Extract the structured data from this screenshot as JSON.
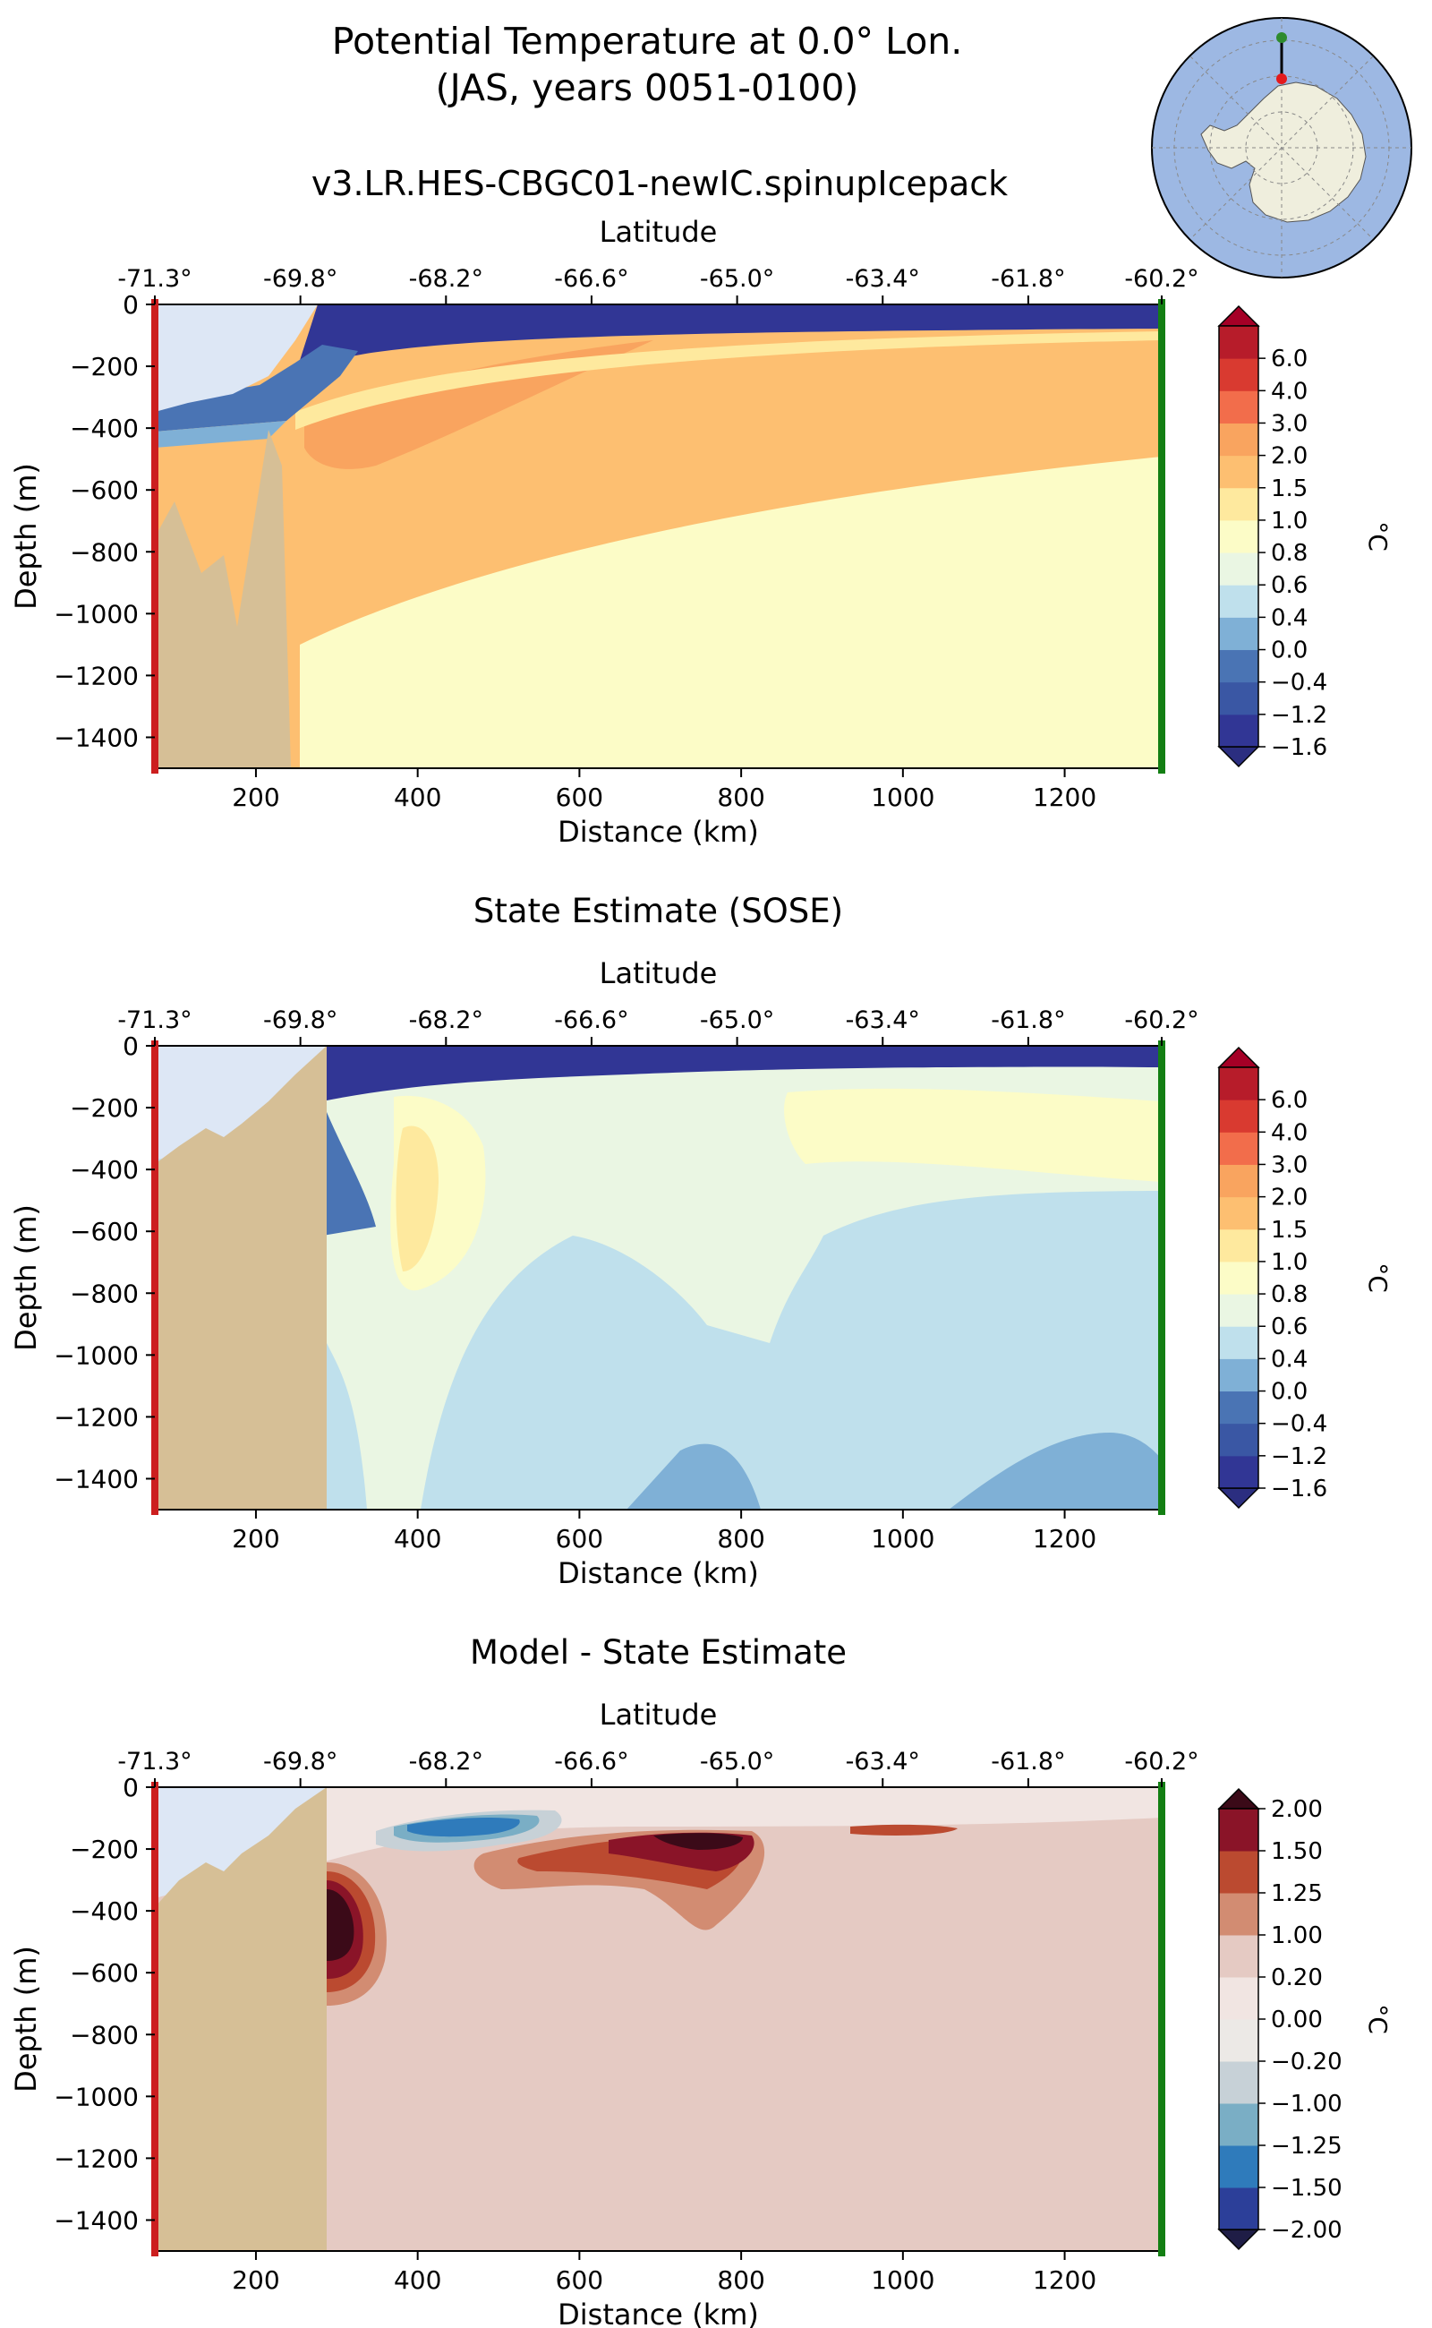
{
  "header": {
    "title_line1": "Potential Temperature at 0.0° Lon.",
    "title_line2": "(JAS, years 0051-0100)",
    "run_name": "v3.LR.HES-CBGC01-newIC.spinupIcepack"
  },
  "inset_map": {
    "projection": "south-polar-stereographic",
    "ocean_color": "#9db8e3",
    "land_color": "#efeedd",
    "transect_color": "#000000",
    "start_marker_color": "#e41a1c",
    "end_marker_color": "#2e8b2e"
  },
  "colors": {
    "ice_shelf_cavity": "#dde7f5",
    "bathymetry": "#d6bf96",
    "section_start_line": "#cc1f1f",
    "section_end_line": "#137f13"
  },
  "chart_data": [
    {
      "type": "heatmap",
      "subplot": "model",
      "title": "",
      "xlabel": "Distance (km)",
      "ylabel": "Depth (m)",
      "top_xlabel": "Latitude",
      "xlim": [
        75,
        1320
      ],
      "ylim": [
        -1500,
        0
      ],
      "xticks": [
        200,
        400,
        600,
        800,
        1000,
        1200
      ],
      "xtick_labels": [
        "200",
        "400",
        "600",
        "800",
        "1000",
        "1200"
      ],
      "yticks": [
        0,
        -200,
        -400,
        -600,
        -800,
        -1000,
        -1200,
        -1400
      ],
      "ytick_labels": [
        "0",
        "−200",
        "−400",
        "−600",
        "−800",
        "−1000",
        "−1200",
        "−1400"
      ],
      "lat_tick_positions": [
        75,
        255,
        435,
        615,
        795,
        975,
        1155,
        1320
      ],
      "lat_tick_labels": [
        "-71.3°",
        "-69.8°",
        "-68.2°",
        "-66.6°",
        "-65.0°",
        "-63.4°",
        "-61.8°",
        "-60.2°"
      ],
      "colorbar": {
        "label": "°C",
        "levels": [
          -1.6,
          -1.2,
          -0.4,
          0.0,
          0.4,
          0.6,
          0.8,
          1.0,
          1.5,
          2.0,
          3.0,
          4.0,
          6.0
        ],
        "tick_labels": [
          "−1.6",
          "−1.2",
          "−0.4",
          "0.0",
          "0.4",
          "0.6",
          "0.8",
          "1.0",
          "1.5",
          "2.0",
          "3.0",
          "4.0",
          "6.0"
        ],
        "colors": [
          "#313695",
          "#3a57a4",
          "#4a74b4",
          "#7fb0d6",
          "#bfe0ec",
          "#eaf6e3",
          "#fcfcc7",
          "#fee99e",
          "#fdbf71",
          "#f9a45f",
          "#f26d4b",
          "#d93a30",
          "#b71c2a"
        ],
        "under_color": "#2b2e80",
        "over_color": "#a50026"
      },
      "background_value": 0.9,
      "features": [
        {
          "value": -1.8,
          "x": [
            295,
            1315,
            1315,
            1315,
            295
          ],
          "y": [
            -25,
            -25,
            -110,
            -110,
            -110
          ],
          "note": "surface cold layer"
        },
        {
          "value": 1.2,
          "x": [
            255,
            1315
          ],
          "y": [
            -130,
            -520
          ]
        },
        {
          "value": 1.8,
          "x": [
            350,
            700
          ],
          "y": [
            -150,
            -450
          ]
        },
        {
          "value": 0.9,
          "x": [
            255,
            1315
          ],
          "y": [
            -1100,
            -1500
          ]
        }
      ],
      "mask": {
        "cavity_top_depth_km": [
          75,
          170,
          255,
          295
        ],
        "bathymetry": "continental shelf to ~255 km"
      }
    },
    {
      "type": "heatmap",
      "subplot": "sose",
      "title": "State Estimate (SOSE)",
      "xlabel": "Distance (km)",
      "ylabel": "Depth (m)",
      "top_xlabel": "Latitude",
      "xlim": [
        75,
        1320
      ],
      "ylim": [
        -1500,
        0
      ],
      "xticks": [
        200,
        400,
        600,
        800,
        1000,
        1200
      ],
      "xtick_labels": [
        "200",
        "400",
        "600",
        "800",
        "1000",
        "1200"
      ],
      "yticks": [
        0,
        -200,
        -400,
        -600,
        -800,
        -1000,
        -1200,
        -1400
      ],
      "ytick_labels": [
        "0",
        "−200",
        "−400",
        "−600",
        "−800",
        "−1000",
        "−1200",
        "−1400"
      ],
      "lat_tick_positions": [
        75,
        255,
        435,
        615,
        795,
        975,
        1155,
        1320
      ],
      "lat_tick_labels": [
        "-71.3°",
        "-69.8°",
        "-68.2°",
        "-66.6°",
        "-65.0°",
        "-63.4°",
        "-61.8°",
        "-60.2°"
      ],
      "colorbar": {
        "label": "°C",
        "levels": [
          -1.6,
          -1.2,
          -0.4,
          0.0,
          0.4,
          0.6,
          0.8,
          1.0,
          1.5,
          2.0,
          3.0,
          4.0,
          6.0
        ],
        "tick_labels": [
          "−1.6",
          "−1.2",
          "−0.4",
          "0.0",
          "0.4",
          "0.6",
          "0.8",
          "1.0",
          "1.5",
          "2.0",
          "3.0",
          "4.0",
          "6.0"
        ],
        "colors": [
          "#313695",
          "#3a57a4",
          "#4a74b4",
          "#7fb0d6",
          "#bfe0ec",
          "#eaf6e3",
          "#fcfcc7",
          "#fee99e",
          "#fdbf71",
          "#f9a45f",
          "#f26d4b",
          "#d93a30",
          "#b71c2a"
        ],
        "under_color": "#2b2e80",
        "over_color": "#a50026"
      },
      "background_value": 0.2
    },
    {
      "type": "heatmap",
      "subplot": "difference",
      "title": "Model - State Estimate",
      "xlabel": "Distance (km)",
      "ylabel": "Depth (m)",
      "top_xlabel": "Latitude",
      "xlim": [
        75,
        1320
      ],
      "ylim": [
        -1500,
        0
      ],
      "xticks": [
        200,
        400,
        600,
        800,
        1000,
        1200
      ],
      "xtick_labels": [
        "200",
        "400",
        "600",
        "800",
        "1000",
        "1200"
      ],
      "yticks": [
        0,
        -200,
        -400,
        -600,
        -800,
        -1000,
        -1200,
        -1400
      ],
      "ytick_labels": [
        "0",
        "−200",
        "−400",
        "−600",
        "−800",
        "−1000",
        "−1200",
        "−1400"
      ],
      "lat_tick_positions": [
        75,
        255,
        435,
        615,
        795,
        975,
        1155,
        1320
      ],
      "lat_tick_labels": [
        "-71.3°",
        "-69.8°",
        "-68.2°",
        "-66.6°",
        "-65.0°",
        "-63.4°",
        "-61.8°",
        "-60.2°"
      ],
      "colorbar": {
        "label": "°C",
        "levels": [
          -2.0,
          -1.5,
          -1.25,
          -1.0,
          -0.2,
          0.0,
          0.2,
          1.0,
          1.25,
          1.5,
          2.0
        ],
        "tick_labels": [
          "−2.00",
          "−1.50",
          "−1.25",
          "−1.00",
          "−0.20",
          "0.00",
          "0.20",
          "1.00",
          "1.25",
          "1.50",
          "2.00"
        ],
        "colors": [
          "#2c3f99",
          "#2f7bbb",
          "#7aaec5",
          "#c7d1d7",
          "#ece9e6",
          "#f1e5e2",
          "#e5cac3",
          "#d28c72",
          "#bb4a30",
          "#8a1428"
        ],
        "under_color": "#1f1d46",
        "over_color": "#3b0a18"
      },
      "background_value": 0.6
    }
  ]
}
